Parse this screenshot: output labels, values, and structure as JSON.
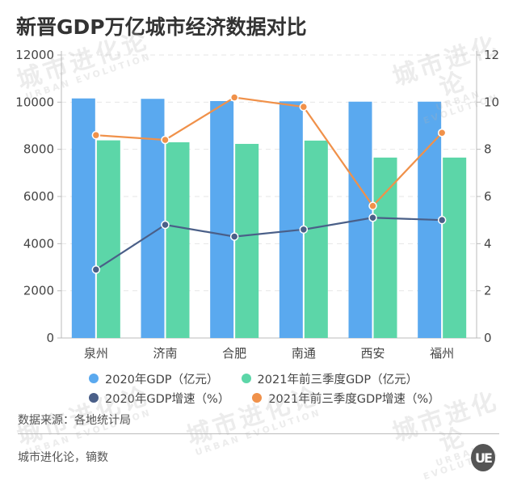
{
  "title": "新晋GDP万亿城市经济数据对比",
  "watermark": {
    "cn": "城市进化论",
    "en": "URBAN EVOLUTION"
  },
  "chart_data": {
    "type": "bar",
    "title": "新晋GDP万亿城市经济数据对比",
    "categories": [
      "泉州",
      "济南",
      "合肥",
      "南通",
      "西安",
      "福州"
    ],
    "series": [
      {
        "name": "2020年GDP（亿元）",
        "type": "bar",
        "axis": "left",
        "color": "#5aa9ef",
        "values": [
          10158,
          10141,
          10046,
          10036,
          10020,
          10020
        ]
      },
      {
        "name": "2021年前三季度GDP（亿元）",
        "type": "bar",
        "axis": "left",
        "color": "#5cd6a8",
        "values": [
          8380,
          8300,
          8230,
          8370,
          7650,
          7650
        ]
      },
      {
        "name": "2020年GDP增速（%）",
        "type": "line",
        "axis": "right",
        "color": "#4a5f88",
        "values": [
          2.9,
          4.8,
          4.3,
          4.6,
          5.1,
          5.0
        ]
      },
      {
        "name": "2021年前三季度GDP增速（%）",
        "type": "line",
        "axis": "right",
        "color": "#f0914a",
        "values": [
          8.6,
          8.4,
          10.2,
          9.8,
          5.6,
          8.7
        ]
      }
    ],
    "left_axis": {
      "ticks": [
        0,
        2000,
        4000,
        6000,
        8000,
        10000,
        12000
      ],
      "ylim": [
        0,
        12000
      ]
    },
    "right_axis": {
      "ticks": [
        0,
        2,
        4,
        6,
        8,
        10,
        12
      ],
      "ylim": [
        0,
        12
      ]
    },
    "xlabel": "",
    "ylabel": "",
    "grid": true,
    "legend_position": "bottom"
  },
  "legend": [
    {
      "label": "2020年GDP（亿元）",
      "color": "#5aa9ef"
    },
    {
      "label": "2021年前三季度GDP（亿元）",
      "color": "#5cd6a8"
    },
    {
      "label": "2020年GDP增速（%）",
      "color": "#4a5f88"
    },
    {
      "label": "2021年前三季度GDP增速（%）",
      "color": "#f0914a"
    }
  ],
  "footer": {
    "source": "数据来源：各地统计局",
    "credits": "城市进化论，镝数",
    "logo": "UE"
  }
}
